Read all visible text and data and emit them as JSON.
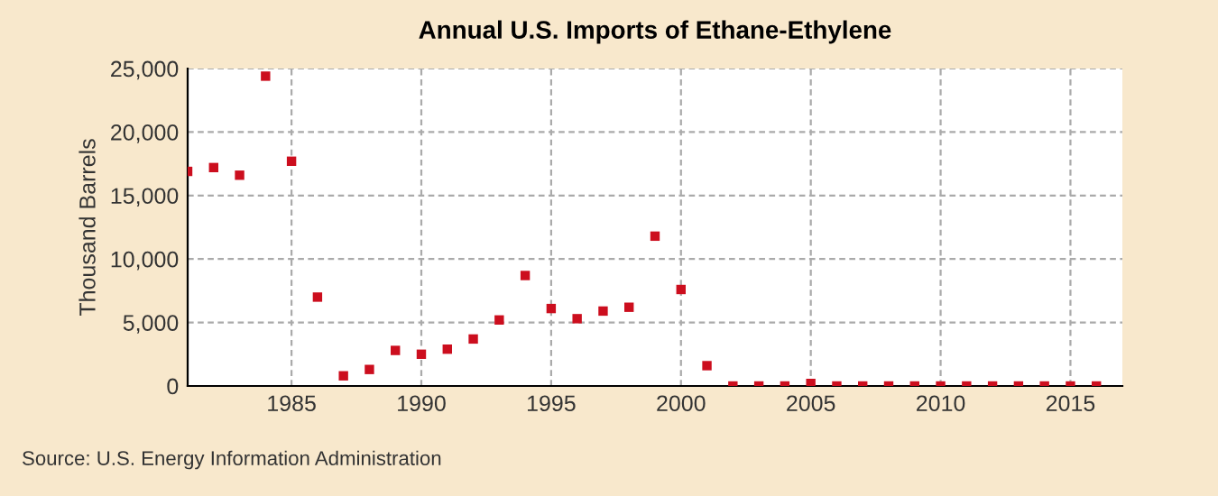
{
  "chart_data": {
    "type": "scatter",
    "title": "Annual U.S. Imports of Ethane-Ethylene",
    "ylabel": "Thousand Barrels",
    "x": [
      1981,
      1982,
      1983,
      1984,
      1985,
      1986,
      1987,
      1988,
      1989,
      1990,
      1991,
      1992,
      1993,
      1994,
      1995,
      1996,
      1997,
      1998,
      1999,
      2000,
      2001,
      2002,
      2003,
      2004,
      2005,
      2006,
      2007,
      2008,
      2009,
      2010,
      2011,
      2012,
      2013,
      2014,
      2015,
      2016
    ],
    "series": [
      {
        "color": "#cc0e1e",
        "values": [
          16900,
          17200,
          16600,
          24400,
          17700,
          7000,
          800,
          1300,
          2800,
          2500,
          2900,
          3700,
          5200,
          8700,
          6100,
          5300,
          5900,
          6200,
          11800,
          7600,
          1600,
          0,
          0,
          0,
          200,
          0,
          0,
          0,
          0,
          0,
          0,
          0,
          0,
          0,
          0,
          0
        ]
      }
    ],
    "xlim": [
      1981,
      2017
    ],
    "xticks": [
      1985,
      1990,
      1995,
      2000,
      2005,
      2010,
      2015
    ],
    "ylim": [
      0,
      25000
    ],
    "yticks": [
      {
        "value": 0,
        "label": "0"
      },
      {
        "value": 5000,
        "label": "5,000"
      },
      {
        "value": 10000,
        "label": "10,000"
      },
      {
        "value": 15000,
        "label": "15,000"
      },
      {
        "value": 20000,
        "label": "20,000"
      },
      {
        "value": 25000,
        "label": "25,000"
      }
    ],
    "grid": true,
    "marker": "square",
    "annotations": [
      "Source: U.S. Energy Information Administration"
    ]
  }
}
